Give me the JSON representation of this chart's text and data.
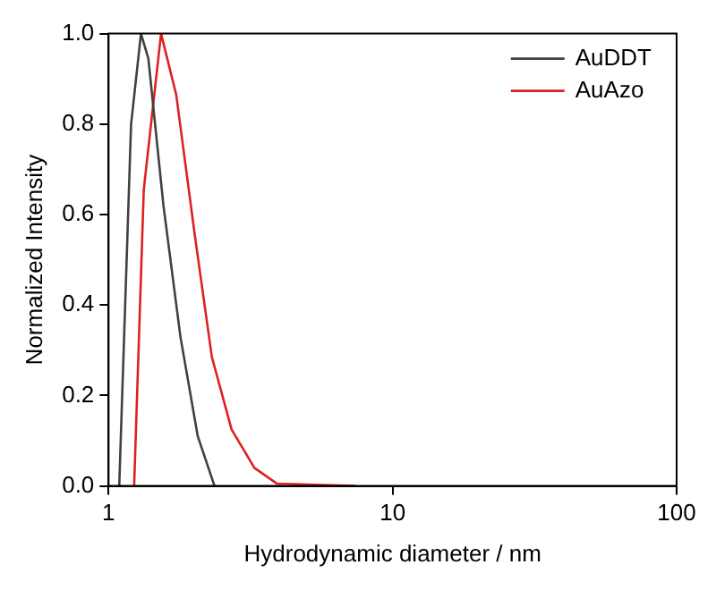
{
  "chart_data": {
    "type": "line",
    "xlabel": "Hydrodynamic diameter / nm",
    "ylabel": "Normalized Intensity",
    "log": "x",
    "xlim": [
      1,
      100
    ],
    "xticks": [
      1,
      10,
      100
    ],
    "ylim": [
      0,
      1
    ],
    "yticks": [
      {
        "value": 0,
        "label": "0.0"
      },
      {
        "value": 0.2,
        "label": "0.2"
      },
      {
        "value": 0.4,
        "label": "0.4"
      },
      {
        "value": 0.6,
        "label": "0.6"
      },
      {
        "value": 0.8,
        "label": "0.8"
      },
      {
        "value": 1,
        "label": "1.0"
      }
    ],
    "grid": false,
    "legend": "top right",
    "marker": "none",
    "line_style": "solid",
    "series": [
      {
        "name": "AuDDT",
        "color": "#404040",
        "x": [
          1.09,
          1.2,
          1.3,
          1.38,
          1.56,
          1.79,
          2.06,
          2.36
        ],
        "values": [
          0,
          0.8,
          1,
          0.945,
          0.62,
          0.33,
          0.11,
          0
        ]
      },
      {
        "name": "AuAzo",
        "color": "#e02020",
        "x": [
          1.23,
          1.33,
          1.53,
          1.73,
          2.01,
          2.31,
          2.71,
          3.26,
          3.92,
          7.4
        ],
        "values": [
          0,
          0.655,
          1,
          0.865,
          0.556,
          0.285,
          0.125,
          0.04,
          0.005,
          0
        ]
      }
    ]
  }
}
